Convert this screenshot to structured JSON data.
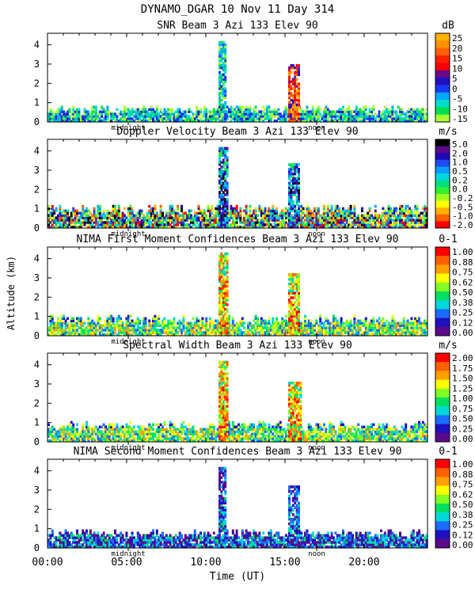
{
  "figure": {
    "title": "DYNAMO_DGAR  10 Nov 11 Day 314",
    "xlabel": "Time (UT)",
    "ylabel": "Altitude (km)",
    "x_ticks": [
      {
        "label": "00:00",
        "hour": 0
      },
      {
        "label": "05:00",
        "hour": 5
      },
      {
        "label": "10:00",
        "hour": 10
      },
      {
        "label": "15:00",
        "hour": 15
      },
      {
        "label": "20:00",
        "hour": 20
      }
    ],
    "y_ticks": [
      "0",
      "1",
      "2",
      "3",
      "4"
    ],
    "markers": [
      {
        "label": "midnight",
        "hour": 5.1
      },
      {
        "label": "noon",
        "hour": 17.0
      }
    ]
  },
  "chart_data": [
    {
      "type": "heatmap",
      "title": "SNR Beam 3 Azi 133 Elev 90",
      "unit": "dB",
      "xlabel": "Time (UT)",
      "ylabel": "Altitude (km)",
      "xlim": [
        0,
        24
      ],
      "ylim": [
        0,
        4.6
      ],
      "colorbar": {
        "labels": [
          "25",
          "20",
          "15",
          "10",
          "5",
          "0",
          "-5",
          "-10",
          "-15"
        ],
        "colors": [
          "#ffb000",
          "#ff9000",
          "#ff6000",
          "#ff2000",
          "#ff0000",
          "#6a0a8a",
          "#2010c0",
          "#1a38f0",
          "#00a8ff",
          "#00ddcc",
          "#00e050",
          "#a8ff30"
        ]
      },
      "features": [
        {
          "from_hour": 0,
          "to_hour": 24,
          "max_km": 0.8,
          "level": "low"
        },
        {
          "from_hour": 10.8,
          "to_hour": 11.2,
          "max_km": 4.2,
          "level": "low"
        },
        {
          "from_hour": 15.2,
          "to_hour": 15.8,
          "max_km": 3.0,
          "level": "high"
        }
      ]
    },
    {
      "type": "heatmap",
      "title": "Doppler Velocity Beam 3 Azi 133 Elev 90",
      "unit": "m/s",
      "xlabel": "Time (UT)",
      "ylabel": "Altitude (km)",
      "xlim": [
        0,
        24
      ],
      "ylim": [
        0,
        4.6
      ],
      "colorbar": {
        "labels": [
          "5.0",
          "2.0",
          "1.0",
          "0.5",
          "0.2",
          "0.0",
          "-0.2",
          "-0.5",
          "-1.0",
          "-2.0"
        ],
        "colors": [
          "#000000",
          "#5a0a8a",
          "#2008b8",
          "#1a4cf0",
          "#0a9cff",
          "#00d8e0",
          "#00e080",
          "#30f030",
          "#a0ff20",
          "#ffff00",
          "#ffb000",
          "#ff6000",
          "#ff0000"
        ]
      },
      "features": [
        {
          "from_hour": 0,
          "to_hour": 24,
          "max_km": 1.2,
          "level": "mixed"
        },
        {
          "from_hour": 10.8,
          "to_hour": 11.3,
          "max_km": 4.2,
          "level": "high"
        },
        {
          "from_hour": 15.2,
          "to_hour": 15.9,
          "max_km": 3.3,
          "level": "high"
        }
      ]
    },
    {
      "type": "heatmap",
      "title": "NIMA First Moment Confidences Beam 3 Azi 133 Elev 90",
      "unit": "0-1",
      "xlabel": "Time (UT)",
      "ylabel": "Altitude (km)",
      "xlim": [
        0,
        24
      ],
      "ylim": [
        0,
        4.6
      ],
      "colorbar": {
        "labels": [
          "1.00",
          "0.88",
          "0.75",
          "0.62",
          "0.50",
          "0.38",
          "0.25",
          "0.12",
          "0.00"
        ],
        "colors": [
          "#ff0000",
          "#ff6000",
          "#ffa000",
          "#ffff00",
          "#80ff20",
          "#00e060",
          "#00d8d8",
          "#1a6cff",
          "#2010c0",
          "#5a0a8a"
        ]
      },
      "features": [
        {
          "from_hour": 0,
          "to_hour": 24,
          "max_km": 1.0,
          "level": "mid"
        },
        {
          "from_hour": 10.8,
          "to_hour": 11.3,
          "max_km": 4.3,
          "level": "high"
        },
        {
          "from_hour": 15.2,
          "to_hour": 15.8,
          "max_km": 3.2,
          "level": "high"
        }
      ]
    },
    {
      "type": "heatmap",
      "title": "Spectral Width Beam 3 Azi 133 Elev 90",
      "unit": "m/s",
      "xlabel": "Time (UT)",
      "ylabel": "Altitude (km)",
      "xlim": [
        0,
        24
      ],
      "ylim": [
        0,
        4.6
      ],
      "colorbar": {
        "labels": [
          "2.00",
          "1.75",
          "1.50",
          "1.25",
          "1.00",
          "0.75",
          "0.50",
          "0.25",
          "0.00"
        ],
        "colors": [
          "#ff0000",
          "#ff6000",
          "#ffa000",
          "#ffff00",
          "#80ff20",
          "#00e060",
          "#00d8d8",
          "#1a6cff",
          "#2010c0",
          "#5a0a8a"
        ]
      },
      "features": [
        {
          "from_hour": 0,
          "to_hour": 24,
          "max_km": 1.0,
          "level": "mid"
        },
        {
          "from_hour": 10.8,
          "to_hour": 11.3,
          "max_km": 4.1,
          "level": "high"
        },
        {
          "from_hour": 15.2,
          "to_hour": 16.0,
          "max_km": 3.1,
          "level": "high"
        }
      ]
    },
    {
      "type": "heatmap",
      "title": "NIMA Second Moment Confidences Beam 3 Azi 133 Elev 90",
      "unit": "0-1",
      "xlabel": "Time (UT)",
      "ylabel": "Altitude (km)",
      "xlim": [
        0,
        24
      ],
      "ylim": [
        0,
        4.6
      ],
      "colorbar": {
        "labels": [
          "1.00",
          "0.88",
          "0.75",
          "0.62",
          "0.50",
          "0.38",
          "0.25",
          "0.12",
          "0.00"
        ],
        "colors": [
          "#ff0000",
          "#ff6000",
          "#ffa000",
          "#ffff00",
          "#80ff20",
          "#00e060",
          "#00d8d8",
          "#1a6cff",
          "#2010c0",
          "#5a0a8a"
        ]
      },
      "features": [
        {
          "from_hour": 0,
          "to_hour": 24,
          "max_km": 0.9,
          "level": "low"
        },
        {
          "from_hour": 10.8,
          "to_hour": 11.2,
          "max_km": 4.2,
          "level": "low"
        },
        {
          "from_hour": 15.2,
          "to_hour": 15.8,
          "max_km": 3.2,
          "level": "low"
        }
      ]
    }
  ]
}
